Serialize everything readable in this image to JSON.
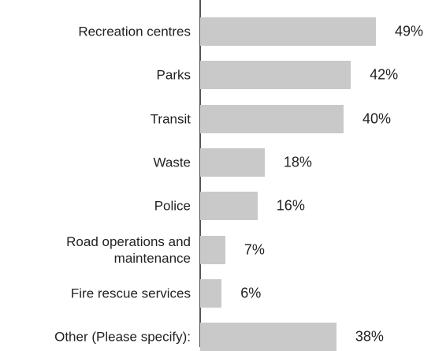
{
  "chart_data": {
    "type": "bar",
    "orientation": "horizontal",
    "categories": [
      "Recreation centres",
      "Parks",
      "Transit",
      "Waste",
      "Police",
      "Road operations and maintenance",
      "Fire rescue services",
      "Other (Please specify):"
    ],
    "values": [
      49,
      42,
      40,
      18,
      16,
      7,
      6,
      38
    ],
    "value_labels": [
      "49%",
      "42%",
      "40%",
      "18%",
      "16%",
      "7%",
      "6%",
      "38%"
    ],
    "color": "#c9c9c9"
  }
}
